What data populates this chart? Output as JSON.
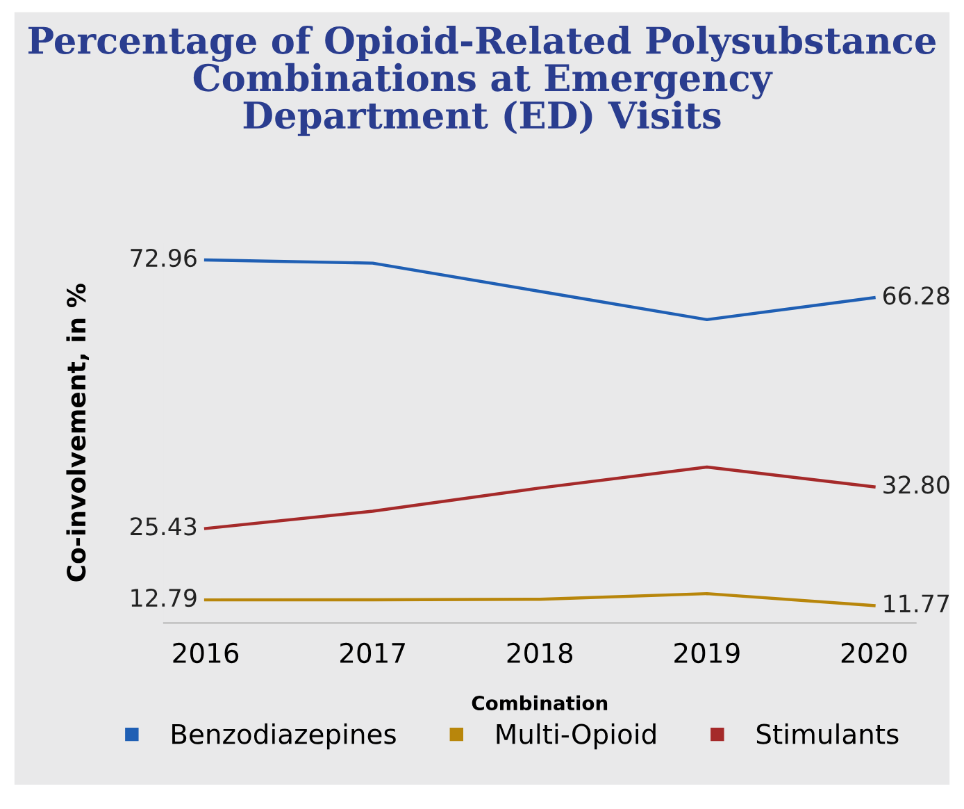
{
  "chart_data": {
    "type": "line",
    "title": "Percentage of Opioid-Related Polysubstance\nCombinations at Emergency\nDepartment (ED) Visits",
    "xlabel": "Combination",
    "ylabel": "Co-involvement, in %",
    "categories": [
      "2016",
      "2017",
      "2018",
      "2019",
      "2020"
    ],
    "series": [
      {
        "name": "Benzodiazepines",
        "color": "#1f5fb4",
        "values": [
          72.96,
          72.4,
          67.4,
          62.4,
          66.28
        ],
        "value_labels": [
          "72.96",
          null,
          null,
          null,
          "66.28"
        ]
      },
      {
        "name": "Multi-Opioid",
        "color": "#b8860b",
        "values": [
          12.79,
          12.8,
          12.9,
          13.9,
          11.77
        ],
        "value_labels": [
          "12.79",
          null,
          null,
          null,
          "11.77"
        ]
      },
      {
        "name": "Stimulants",
        "color": "#a52a2a",
        "values": [
          25.43,
          28.5,
          32.6,
          36.3,
          32.8
        ],
        "value_labels": [
          "25.43",
          null,
          null,
          null,
          "32.80"
        ]
      }
    ],
    "grid": false,
    "legend": "bottom",
    "marker": "none",
    "line_style": "solid",
    "tick_labels": "x"
  }
}
